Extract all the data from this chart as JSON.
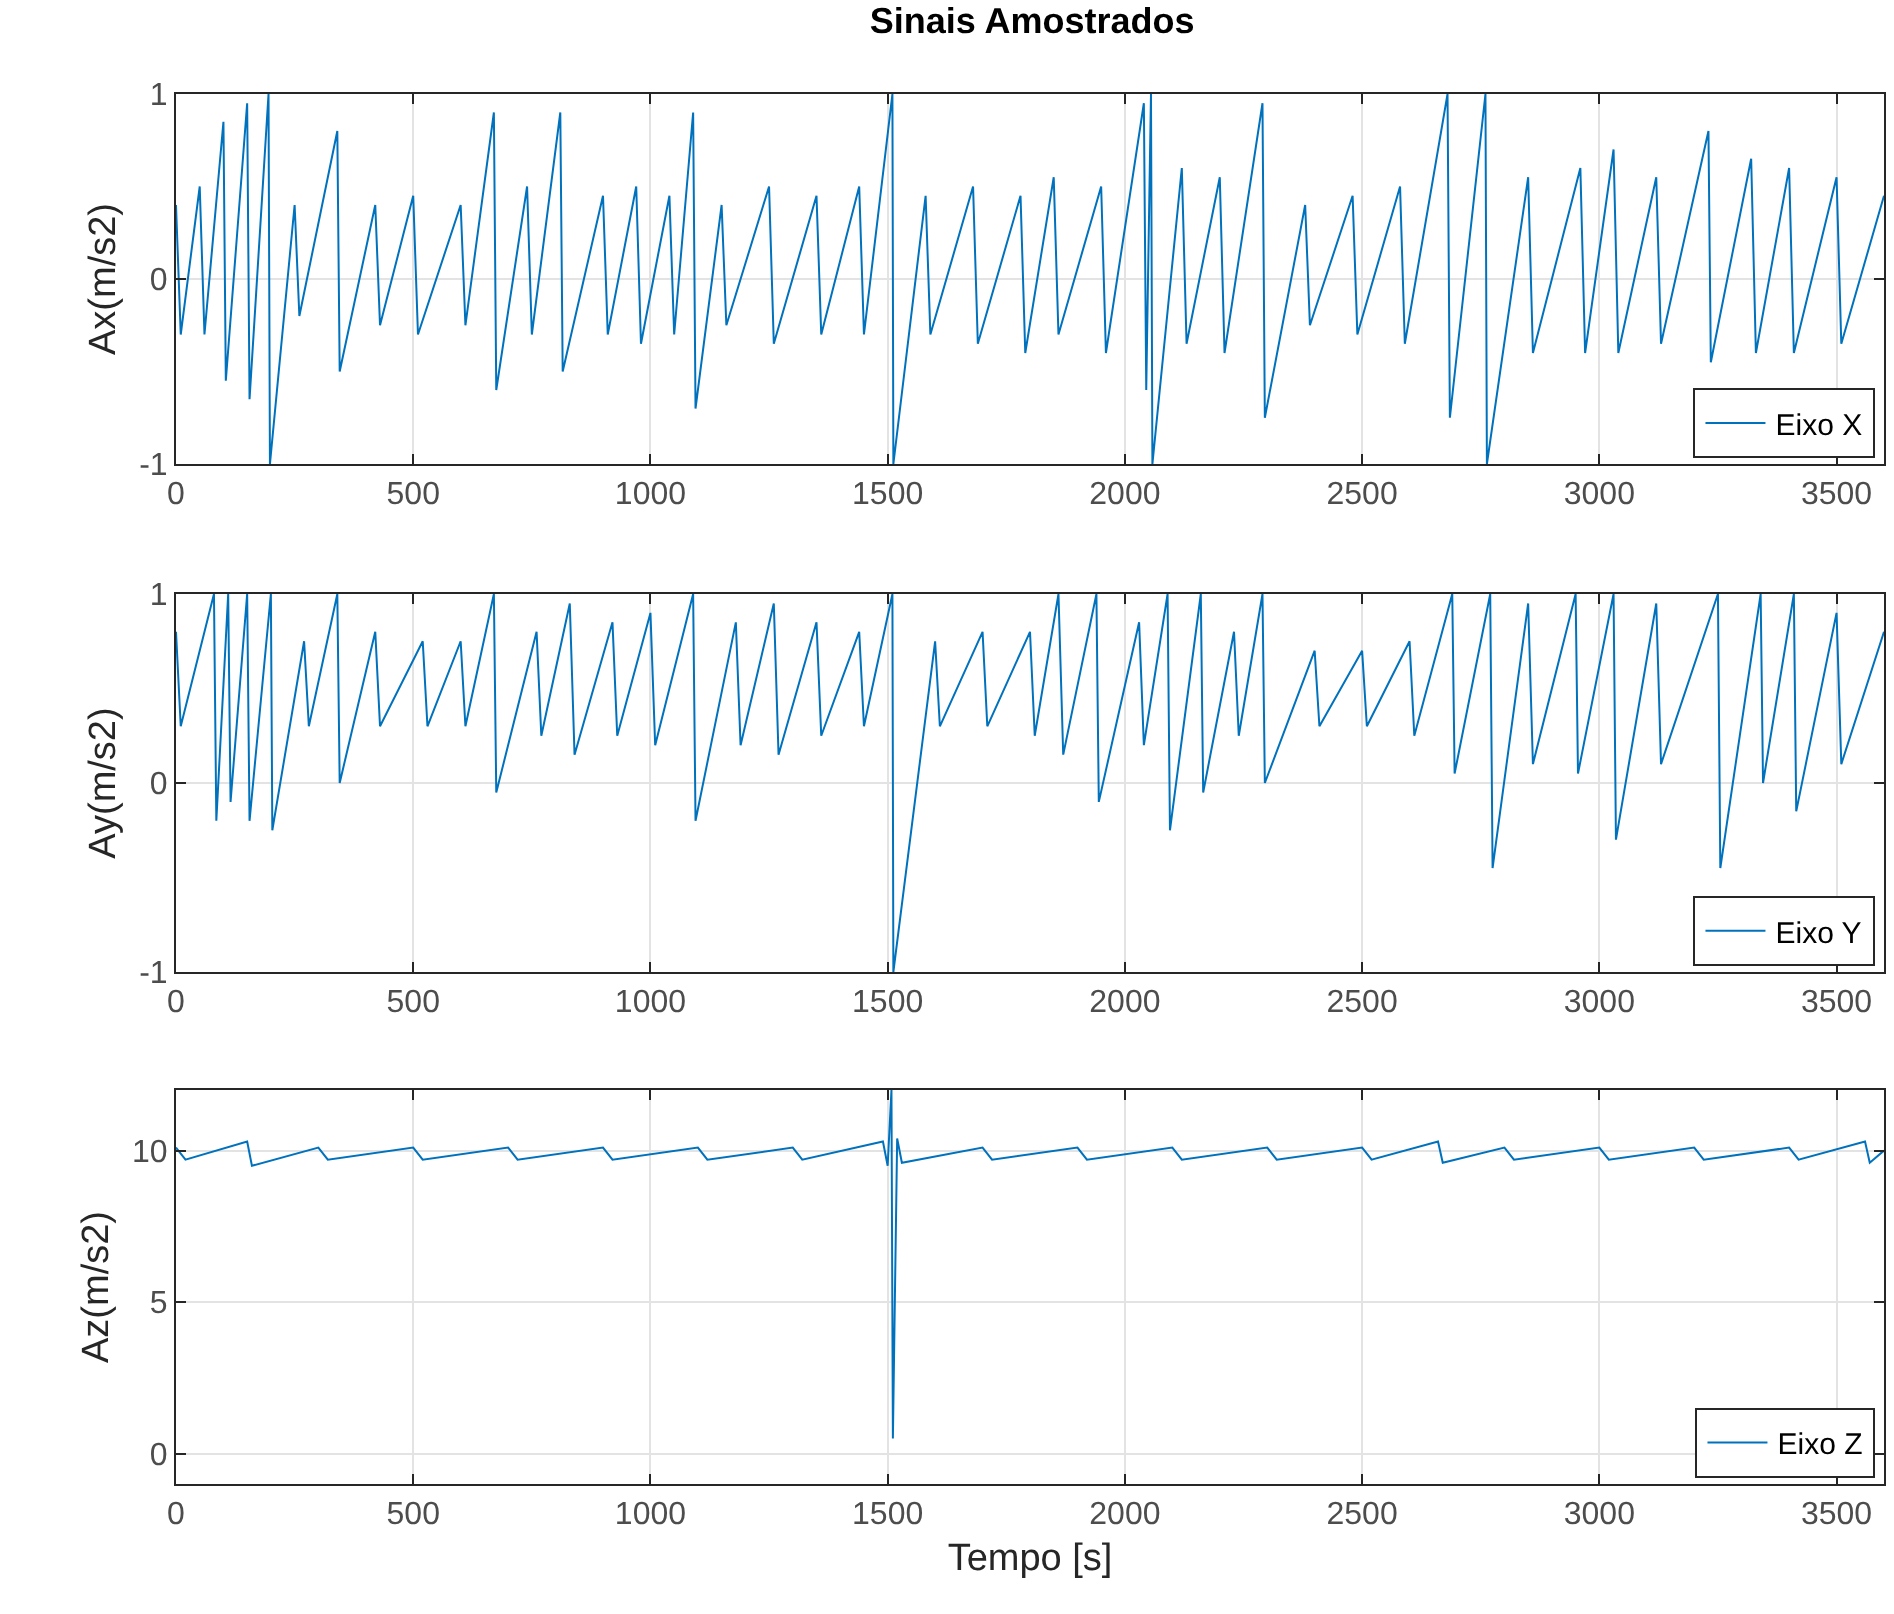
{
  "chart_data": [
    {
      "type": "line",
      "title": "Sinais Amostrados",
      "ylabel": "Ax(m/s2)",
      "xlim": [
        0,
        3600
      ],
      "xticks": [
        0,
        500,
        1000,
        1500,
        2000,
        2500,
        3000,
        3500
      ],
      "ylim": [
        -1,
        1
      ],
      "yticks": [
        -1,
        0,
        1
      ],
      "grid": true,
      "legend": "bottom right",
      "x": [
        0,
        10,
        50,
        60,
        100,
        105,
        150,
        155,
        195,
        198,
        250,
        260,
        340,
        345,
        420,
        430,
        500,
        510,
        600,
        610,
        670,
        675,
        740,
        750,
        810,
        815,
        900,
        910,
        970,
        980,
        1040,
        1050,
        1090,
        1095,
        1150,
        1160,
        1250,
        1260,
        1350,
        1360,
        1440,
        1450,
        1510,
        1512,
        1580,
        1590,
        1680,
        1690,
        1780,
        1790,
        1850,
        1860,
        1950,
        1960,
        2040,
        2045,
        2055,
        2058,
        2120,
        2130,
        2200,
        2210,
        2290,
        2295,
        2380,
        2390,
        2480,
        2490,
        2580,
        2590,
        2680,
        2685,
        2760,
        2763,
        2850,
        2860,
        2960,
        2970,
        3030,
        3040,
        3120,
        3130,
        3230,
        3235,
        3320,
        3330,
        3400,
        3410,
        3500,
        3510,
        3600
      ],
      "series": [
        {
          "name": "Eixo X",
          "color": "#0072bd",
          "values": [
            0.4,
            -0.3,
            0.5,
            -0.3,
            0.85,
            -0.55,
            0.95,
            -0.65,
            1,
            -1,
            0.4,
            -0.2,
            0.8,
            -0.5,
            0.4,
            -0.25,
            0.45,
            -0.3,
            0.4,
            -0.25,
            0.9,
            -0.6,
            0.5,
            -0.3,
            0.9,
            -0.5,
            0.45,
            -0.3,
            0.5,
            -0.35,
            0.45,
            -0.3,
            0.9,
            -0.7,
            0.4,
            -0.25,
            0.5,
            -0.35,
            0.45,
            -0.3,
            0.5,
            -0.3,
            1,
            -1,
            0.45,
            -0.3,
            0.5,
            -0.35,
            0.45,
            -0.4,
            0.55,
            -0.3,
            0.5,
            -0.4,
            0.95,
            -0.6,
            1,
            -1,
            0.6,
            -0.35,
            0.55,
            -0.4,
            0.95,
            -0.75,
            0.4,
            -0.25,
            0.45,
            -0.3,
            0.5,
            -0.35,
            1,
            -0.75,
            1,
            -1,
            0.55,
            -0.4,
            0.6,
            -0.4,
            0.7,
            -0.4,
            0.55,
            -0.35,
            0.8,
            -0.45,
            0.65,
            -0.4,
            0.6,
            -0.4,
            0.55,
            -0.35,
            0.45
          ]
        }
      ]
    },
    {
      "type": "line",
      "ylabel": "Ay(m/s2)",
      "xlim": [
        0,
        3600
      ],
      "xticks": [
        0,
        500,
        1000,
        1500,
        2000,
        2500,
        3000,
        3500
      ],
      "ylim": [
        -1,
        1
      ],
      "yticks": [
        -1,
        0,
        1
      ],
      "grid": true,
      "legend": "bottom right",
      "x": [
        0,
        10,
        80,
        85,
        110,
        115,
        150,
        155,
        200,
        203,
        270,
        280,
        340,
        345,
        420,
        430,
        520,
        530,
        600,
        610,
        670,
        675,
        760,
        770,
        830,
        840,
        920,
        930,
        1000,
        1010,
        1090,
        1095,
        1180,
        1190,
        1260,
        1270,
        1350,
        1360,
        1440,
        1450,
        1510,
        1512,
        1600,
        1610,
        1700,
        1710,
        1800,
        1810,
        1860,
        1870,
        1940,
        1945,
        2030,
        2040,
        2090,
        2095,
        2160,
        2165,
        2230,
        2240,
        2290,
        2295,
        2400,
        2410,
        2500,
        2510,
        2600,
        2610,
        2690,
        2695,
        2770,
        2775,
        2850,
        2860,
        2950,
        2955,
        3030,
        3035,
        3120,
        3130,
        3250,
        3255,
        3340,
        3345,
        3410,
        3415,
        3500,
        3510,
        3600
      ],
      "series": [
        {
          "name": "Eixo Y",
          "color": "#0072bd",
          "values": [
            0.8,
            0.3,
            1,
            -0.2,
            1,
            -0.1,
            1,
            -0.2,
            1,
            -0.25,
            0.75,
            0.3,
            1,
            0,
            0.8,
            0.3,
            0.75,
            0.3,
            0.75,
            0.3,
            1,
            -0.05,
            0.8,
            0.25,
            0.95,
            0.15,
            0.85,
            0.25,
            0.9,
            0.2,
            1,
            -0.2,
            0.85,
            0.2,
            0.95,
            0.15,
            0.85,
            0.25,
            0.8,
            0.3,
            1,
            -1,
            0.75,
            0.3,
            0.8,
            0.3,
            0.8,
            0.25,
            1,
            0.15,
            1,
            -0.1,
            0.85,
            0.2,
            1,
            -0.25,
            1,
            -0.05,
            0.8,
            0.25,
            1,
            0,
            0.7,
            0.3,
            0.7,
            0.3,
            0.75,
            0.25,
            1,
            0.05,
            1,
            -0.45,
            0.95,
            0.1,
            1,
            0.05,
            1,
            -0.3,
            0.95,
            0.1,
            1,
            -0.45,
            1,
            0,
            1,
            -0.15,
            0.9,
            0.1,
            0.8
          ]
        }
      ]
    },
    {
      "type": "line",
      "xlabel": "Tempo [s]",
      "ylabel": "Az(m/s2)",
      "xlim": [
        0,
        3600
      ],
      "xticks": [
        0,
        500,
        1000,
        1500,
        2000,
        2500,
        3000,
        3500
      ],
      "ylim": [
        -1,
        12
      ],
      "yticks": [
        0,
        5,
        10
      ],
      "grid": true,
      "legend": "bottom right",
      "x": [
        0,
        20,
        150,
        160,
        300,
        320,
        500,
        520,
        700,
        720,
        900,
        920,
        1100,
        1120,
        1300,
        1320,
        1490,
        1500,
        1508,
        1511,
        1520,
        1530,
        1700,
        1720,
        1900,
        1920,
        2100,
        2120,
        2300,
        2320,
        2500,
        2520,
        2660,
        2670,
        2800,
        2820,
        3000,
        3020,
        3200,
        3220,
        3400,
        3420,
        3560,
        3570,
        3600
      ],
      "series": [
        {
          "name": "Eixo Z",
          "color": "#0072bd",
          "values": [
            10.1,
            9.7,
            10.3,
            9.5,
            10.1,
            9.7,
            10.1,
            9.7,
            10.1,
            9.7,
            10.1,
            9.7,
            10.1,
            9.7,
            10.1,
            9.7,
            10.3,
            9.5,
            12,
            0.5,
            10.4,
            9.6,
            10.1,
            9.7,
            10.1,
            9.7,
            10.1,
            9.7,
            10.1,
            9.7,
            10.1,
            9.7,
            10.3,
            9.6,
            10.1,
            9.7,
            10.1,
            9.7,
            10.1,
            9.7,
            10.1,
            9.7,
            10.3,
            9.6,
            10
          ]
        }
      ]
    }
  ]
}
